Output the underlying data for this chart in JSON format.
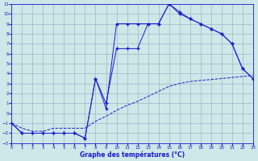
{
  "title": "Graphe des températures (°C)",
  "bg_color": "#cce8e8",
  "grid_color": "#9ab8c8",
  "line_color": "#1a1acc",
  "xlim_min": 0,
  "xlim_max": 23,
  "ylim_min": -3,
  "ylim_max": 11,
  "xticks": [
    0,
    1,
    2,
    3,
    4,
    5,
    6,
    7,
    8,
    9,
    10,
    11,
    12,
    13,
    14,
    15,
    16,
    17,
    18,
    19,
    20,
    21,
    22,
    23
  ],
  "yticks": [
    -3,
    -2,
    -1,
    0,
    1,
    2,
    3,
    4,
    5,
    6,
    7,
    8,
    9,
    10,
    11
  ],
  "line1_x": [
    0,
    1,
    2,
    3,
    4,
    5,
    6,
    7,
    8,
    9,
    10,
    11,
    12,
    13,
    14,
    15,
    16,
    17,
    18,
    19,
    20,
    21,
    22,
    23
  ],
  "line1_y": [
    -1,
    -2,
    -2,
    -2,
    -2,
    -2,
    -2,
    -2.5,
    3.5,
    0.5,
    9,
    9,
    9,
    9,
    9,
    11,
    10,
    9.5,
    9,
    8.5,
    8,
    7,
    4.5,
    3.5
  ],
  "line2_x": [
    0,
    1,
    2,
    3,
    4,
    5,
    6,
    7,
    8,
    9,
    10,
    11,
    12,
    13,
    14,
    15,
    16,
    17,
    18,
    19,
    20,
    21,
    22,
    23
  ],
  "line2_y": [
    -1,
    -2,
    -2,
    -2,
    -2,
    -2,
    -2,
    -2.5,
    3.5,
    1,
    6.5,
    6.5,
    6.5,
    9,
    9,
    11,
    10.2,
    9.5,
    9,
    8.5,
    8,
    7,
    4.5,
    3.5
  ],
  "line3_x": [
    0,
    1,
    2,
    3,
    4,
    5,
    6,
    7,
    8,
    9,
    10,
    11,
    12,
    13,
    14,
    15,
    16,
    17,
    18,
    19,
    20,
    21,
    22,
    23
  ],
  "line3_y": [
    -1,
    -1.5,
    -1.8,
    -1.8,
    -1.5,
    -1.5,
    -1.5,
    -1.5,
    -0.8,
    -0.3,
    0.3,
    0.8,
    1.2,
    1.7,
    2.2,
    2.7,
    3,
    3.2,
    3.3,
    3.4,
    3.5,
    3.6,
    3.7,
    3.8
  ]
}
